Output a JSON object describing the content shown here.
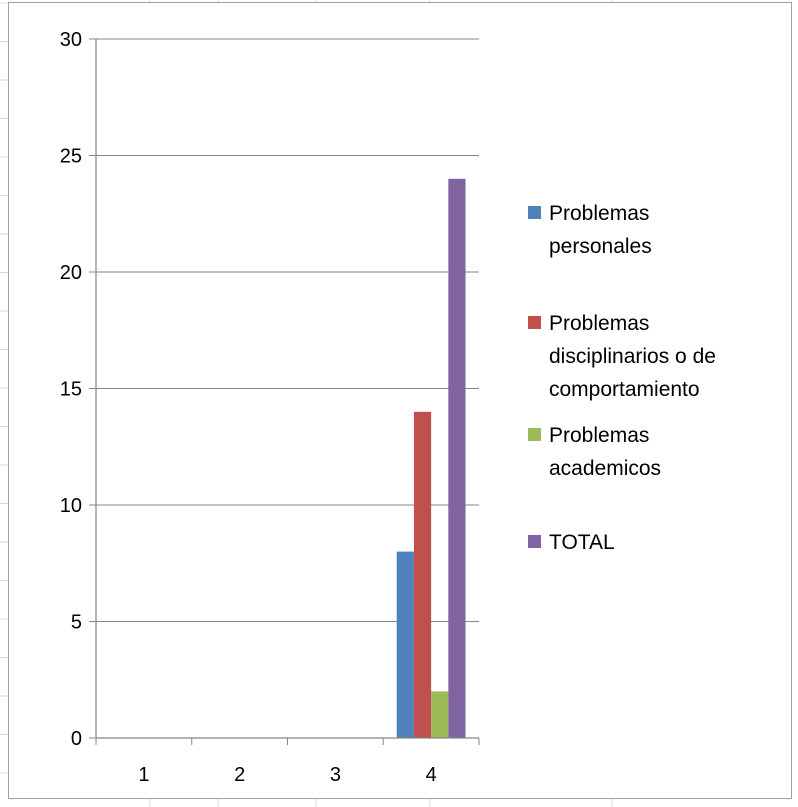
{
  "chart_data": {
    "type": "bar",
    "categories": [
      "1",
      "2",
      "3",
      "4"
    ],
    "series": [
      {
        "name": "Problemas personales",
        "lines": [
          "Problemas",
          "personales"
        ],
        "values": [
          0,
          0,
          0,
          8
        ],
        "color": "#4f81bd"
      },
      {
        "name": "Problemas disciplinarios o de comportamiento",
        "lines": [
          "Problemas",
          "disciplinarios o de",
          "comportamiento"
        ],
        "values": [
          0,
          0,
          0,
          14
        ],
        "color": "#c0504d"
      },
      {
        "name": "Problemas academicos",
        "lines": [
          "Problemas",
          "academicos"
        ],
        "values": [
          0,
          0,
          0,
          2
        ],
        "color": "#9bbb59"
      },
      {
        "name": "TOTAL",
        "lines": [
          "TOTAL"
        ],
        "values": [
          0,
          0,
          0,
          24
        ],
        "color": "#8064a2"
      }
    ],
    "ylim": [
      0,
      30
    ],
    "yticks": [
      0,
      5,
      10,
      15,
      20,
      25,
      30
    ],
    "grid": "horizontal",
    "legend_position": "right",
    "title": "",
    "xlabel": "",
    "ylabel": ""
  },
  "colors": {
    "gridline": "#868686",
    "axis": "#868686",
    "sheet_grid": "#d9d9d9"
  }
}
